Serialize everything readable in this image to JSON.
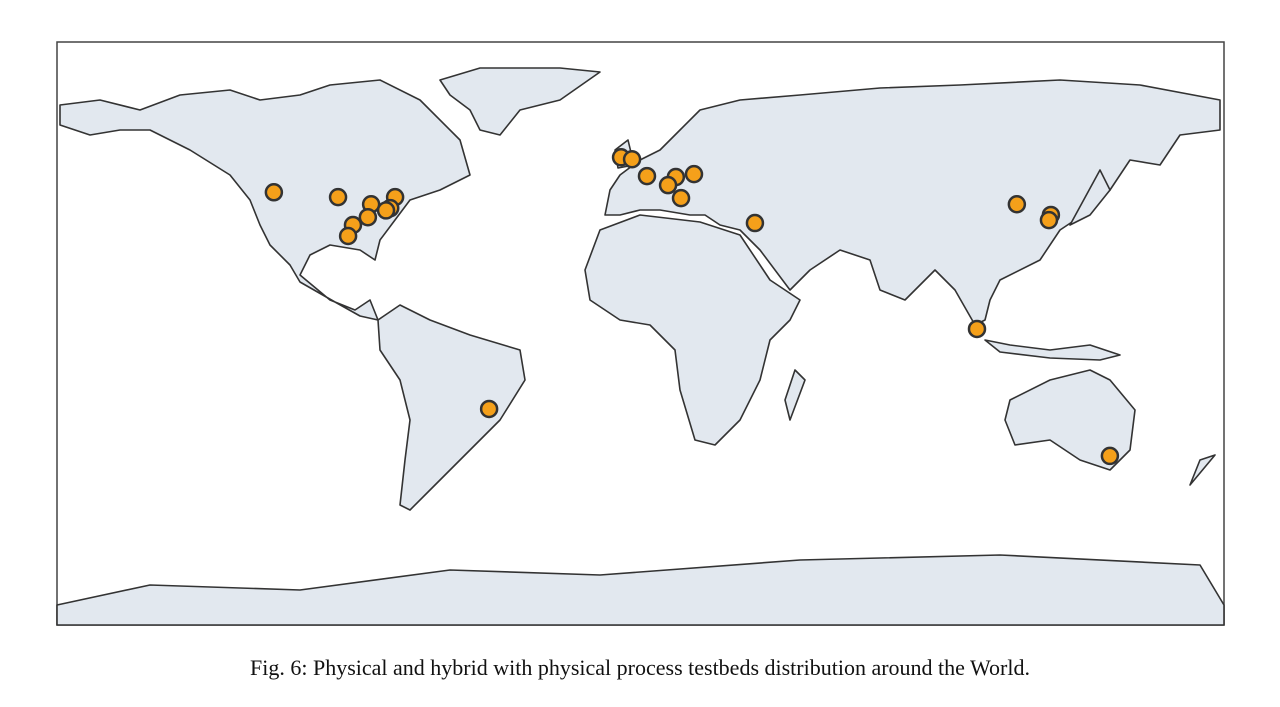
{
  "map": {
    "marker_color": "#f5a01a",
    "lon": [
      -113.1,
      -93.3,
      -83.1,
      -75.7,
      -77.2,
      -78.5,
      -84.1,
      -88.7,
      -90.2,
      -6.0,
      -2.6,
      2.0,
      10.9,
      16.5,
      8.5,
      12.5,
      35.3,
      116.1,
      126.6,
      126.0,
      103.8,
      144.8,
      -46.7
    ],
    "lat": [
      43.6,
      42.1,
      39.9,
      42.1,
      38.7,
      38.0,
      35.9,
      33.5,
      30.1,
      54.4,
      53.8,
      48.6,
      48.3,
      49.2,
      45.8,
      41.8,
      34.1,
      39.9,
      36.6,
      35.0,
      1.4,
      -37.8,
      -23.3
    ]
  },
  "caption": "Fig. 6: Physical and hybrid with physical process testbeds distribution around the World."
}
